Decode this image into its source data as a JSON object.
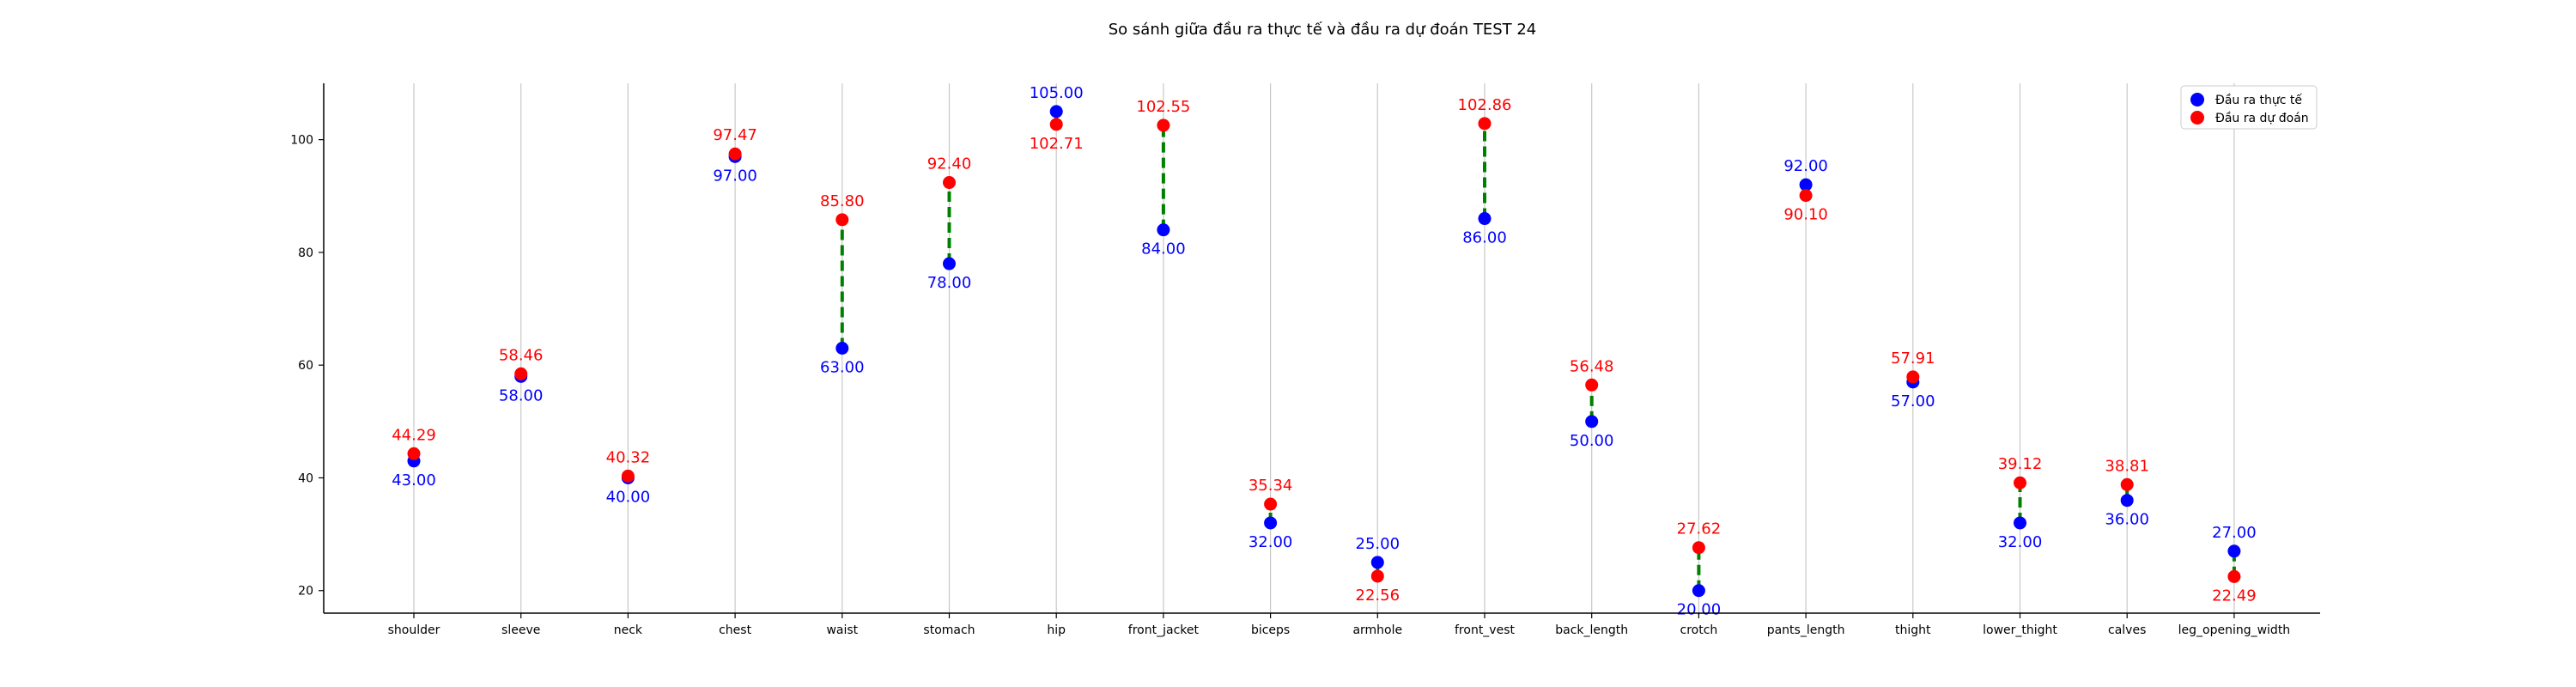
{
  "chart_data": {
    "type": "scatter",
    "title": "So sánh giữa đầu ra thực tế và đầu ra dự đoán TEST 24",
    "xlabel": "",
    "ylabel": "",
    "ylim": [
      16,
      110
    ],
    "yticks": [
      20,
      40,
      60,
      80,
      100
    ],
    "grid": "vertical",
    "legend_position": "top-right",
    "categories": [
      "shoulder",
      "sleeve",
      "neck",
      "chest",
      "waist",
      "stomach",
      "hip",
      "front_jacket",
      "biceps",
      "armhole",
      "front_vest",
      "back_length",
      "crotch",
      "pants_length",
      "thight",
      "lower_thight",
      "calves",
      "leg_opening_width"
    ],
    "series": [
      {
        "name": "Đầu ra thực tế",
        "color": "#0000ff",
        "values": [
          43.0,
          58.0,
          40.0,
          97.0,
          63.0,
          78.0,
          105.0,
          84.0,
          32.0,
          25.0,
          86.0,
          50.0,
          20.0,
          92.0,
          57.0,
          32.0,
          36.0,
          27.0
        ],
        "labels": [
          "43.00",
          "58.00",
          "40.00",
          "97.00",
          "63.00",
          "78.00",
          "105.00",
          "84.00",
          "32.00",
          "25.00",
          "86.00",
          "50.00",
          "20.00",
          "92.00",
          "57.00",
          "32.00",
          "36.00",
          "27.00"
        ]
      },
      {
        "name": "Đầu ra dự đoán",
        "color": "#ff0000",
        "values": [
          44.29,
          58.46,
          40.32,
          97.47,
          85.8,
          92.4,
          102.71,
          102.55,
          35.34,
          22.56,
          102.86,
          56.48,
          27.62,
          90.1,
          57.91,
          39.12,
          38.81,
          22.49
        ],
        "labels": [
          "44.29",
          "58.46",
          "40.32",
          "97.47",
          "85.80",
          "92.40",
          "102.71",
          "102.55",
          "35.34",
          "22.56",
          "102.86",
          "56.48",
          "27.62",
          "90.10",
          "57.91",
          "39.12",
          "38.81",
          "22.49"
        ]
      }
    ],
    "connector_color": "#008000"
  }
}
